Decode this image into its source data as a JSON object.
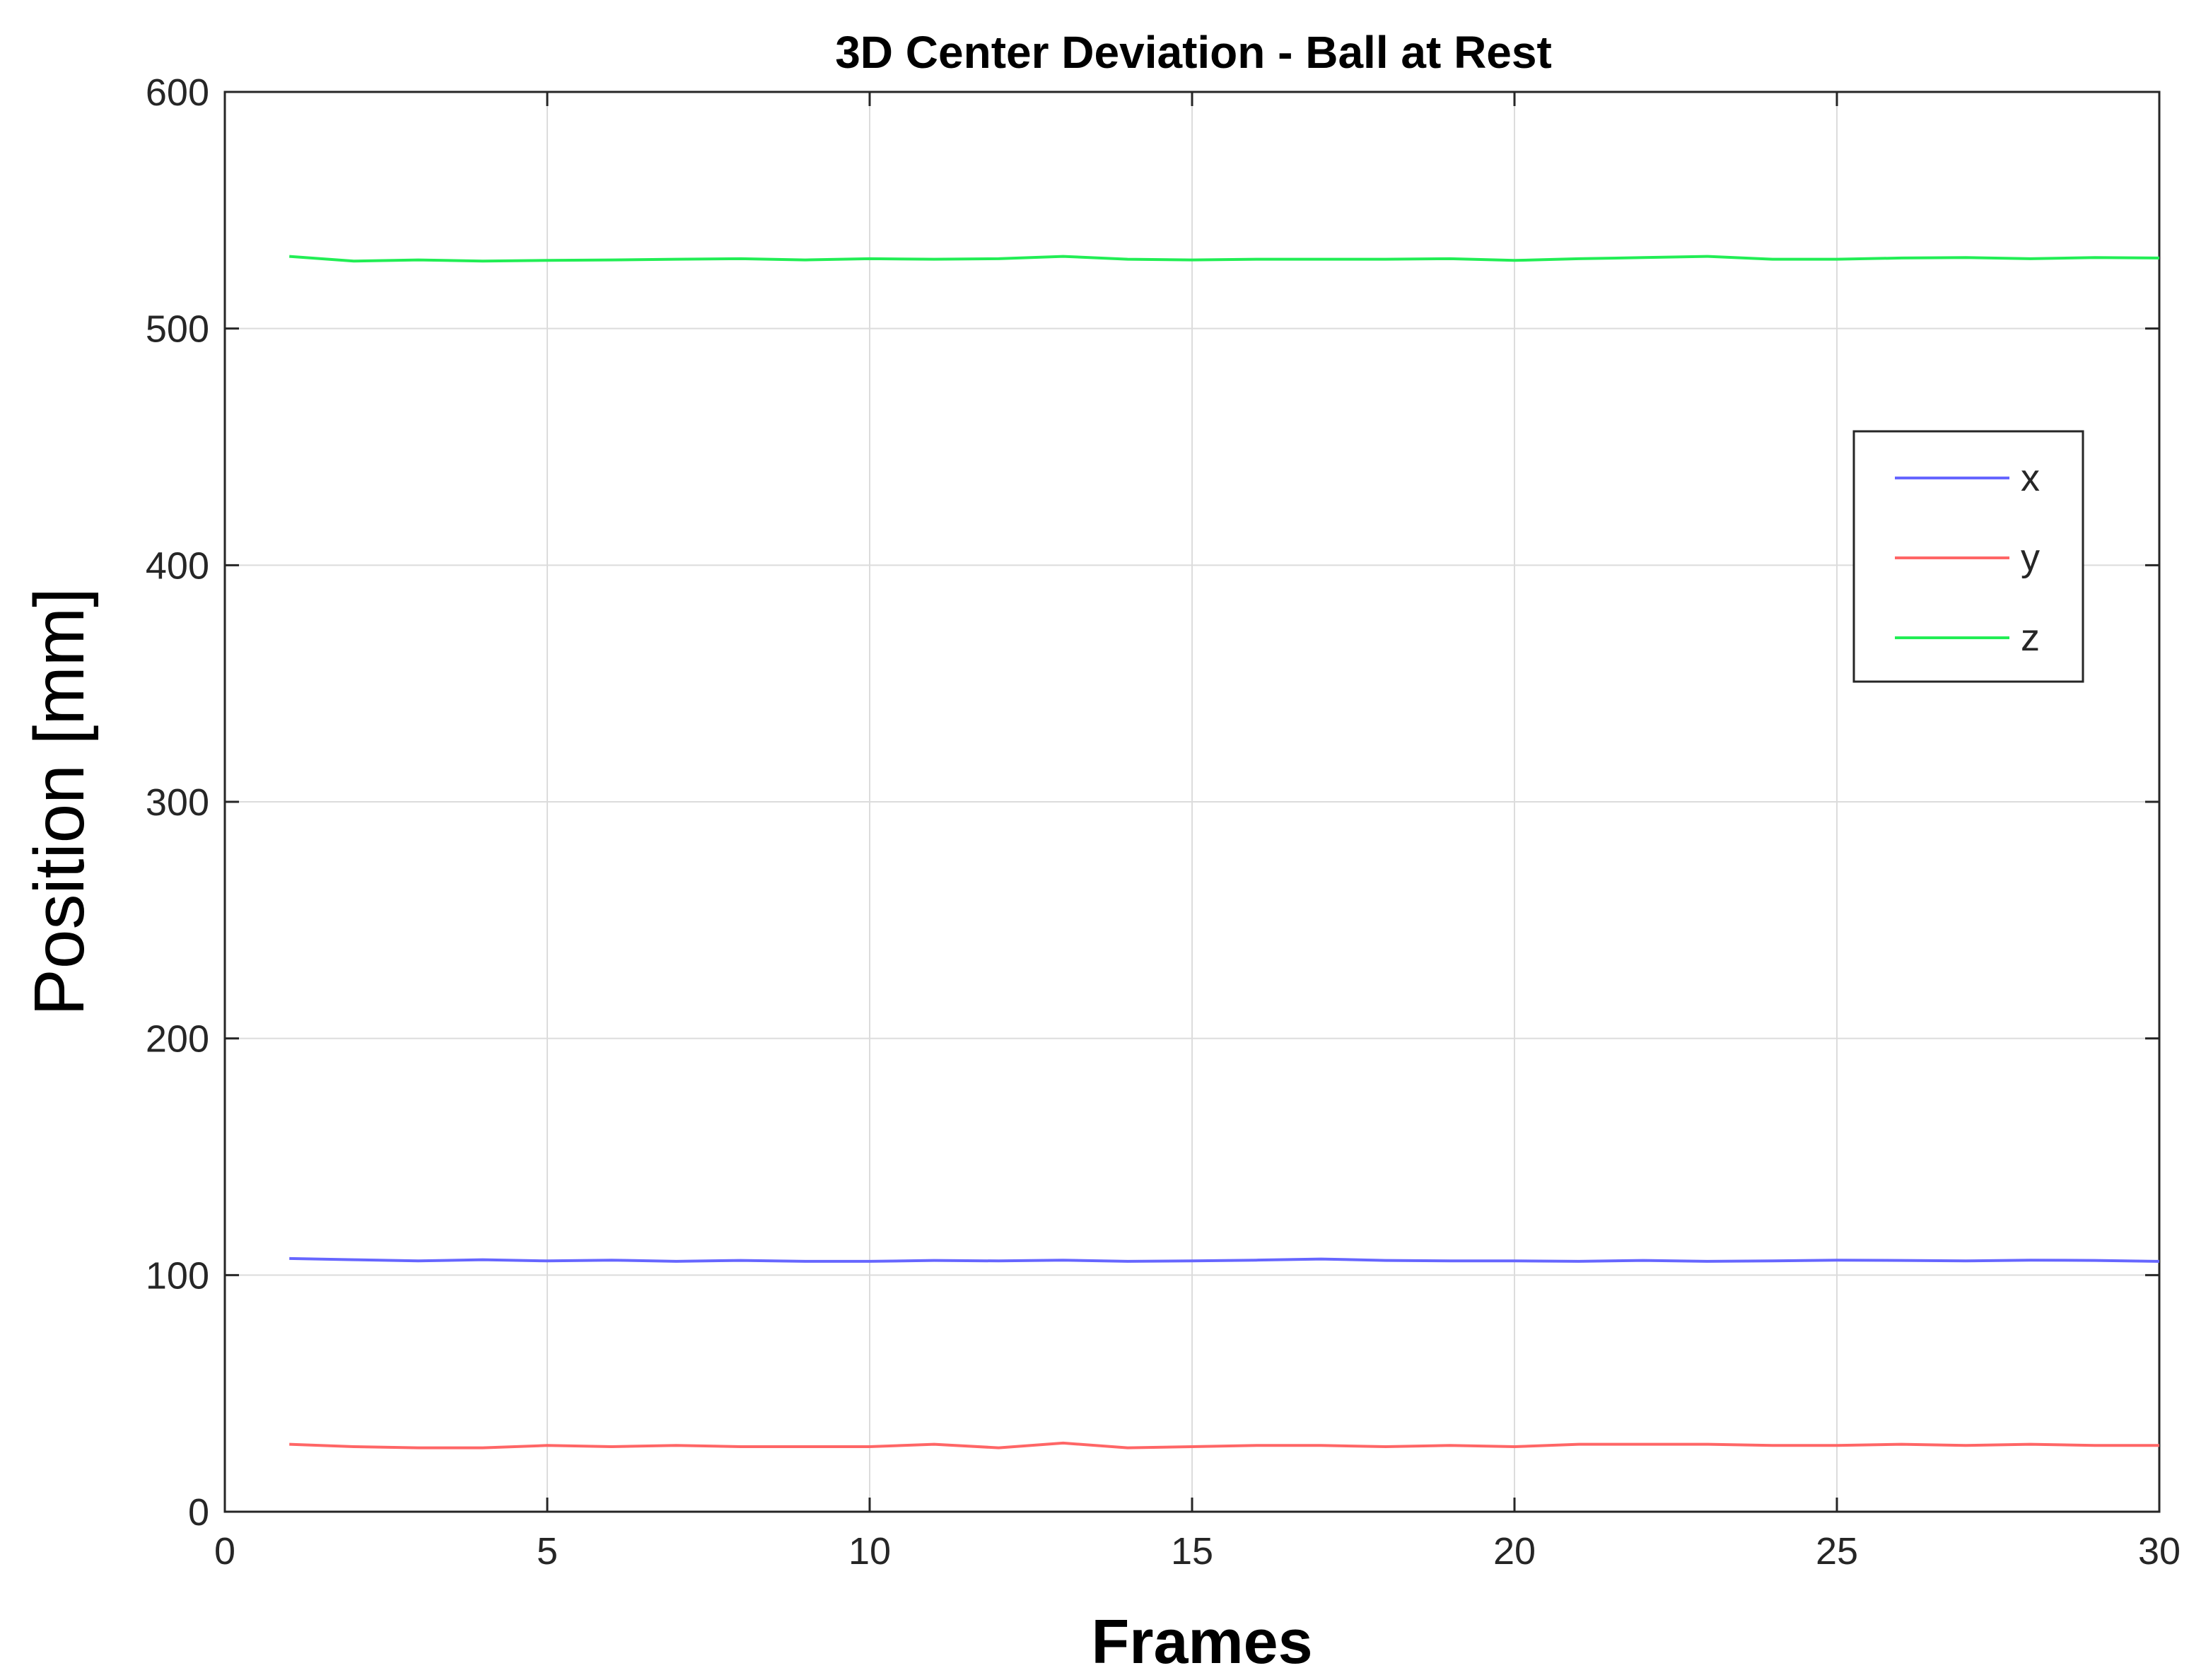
{
  "chart_data": {
    "type": "line",
    "title": "3D Center Deviation - Ball at Rest",
    "xlabel": "Frames",
    "ylabel": "Position [mm]",
    "xlim": [
      0,
      30
    ],
    "ylim": [
      0,
      600
    ],
    "xticks": [
      0,
      5,
      10,
      15,
      20,
      25,
      30
    ],
    "yticks": [
      0,
      100,
      200,
      300,
      400,
      500,
      600
    ],
    "grid": true,
    "legend_position": "top-right",
    "x": [
      1,
      2,
      3,
      4,
      5,
      6,
      7,
      8,
      9,
      10,
      11,
      12,
      13,
      14,
      15,
      16,
      17,
      18,
      19,
      20,
      21,
      22,
      23,
      24,
      25,
      26,
      27,
      28,
      29,
      30
    ],
    "series": [
      {
        "name": "x",
        "color": "#6666ff",
        "values": [
          107,
          106.5,
          106,
          106.5,
          106,
          106.3,
          105.8,
          106.2,
          105.8,
          105.8,
          106.2,
          106,
          106.3,
          105.8,
          106,
          106.3,
          106.8,
          106.2,
          106,
          106,
          105.8,
          106.2,
          105.8,
          106,
          106.3,
          106.2,
          106,
          106.3,
          106.2,
          105.8
        ]
      },
      {
        "name": "y",
        "color": "#ff6666",
        "values": [
          28.5,
          27.5,
          27,
          27,
          28,
          27.5,
          28,
          27.5,
          27.5,
          27.5,
          28.5,
          27,
          29,
          27,
          27.5,
          28,
          28,
          27.5,
          28,
          27.5,
          28.5,
          28.5,
          28.5,
          28,
          28,
          28.5,
          28,
          28.5,
          28,
          28
        ]
      },
      {
        "name": "z",
        "color": "#22ee55",
        "values": [
          530.5,
          528.5,
          529,
          528.5,
          528.8,
          529,
          529.3,
          529.5,
          529,
          529.5,
          529.3,
          529.5,
          530.5,
          529.3,
          529,
          529.3,
          529.3,
          529.3,
          529.5,
          528.8,
          529.5,
          530,
          530.5,
          529.3,
          529.3,
          529.8,
          530,
          529.5,
          530,
          529.8
        ]
      }
    ]
  }
}
